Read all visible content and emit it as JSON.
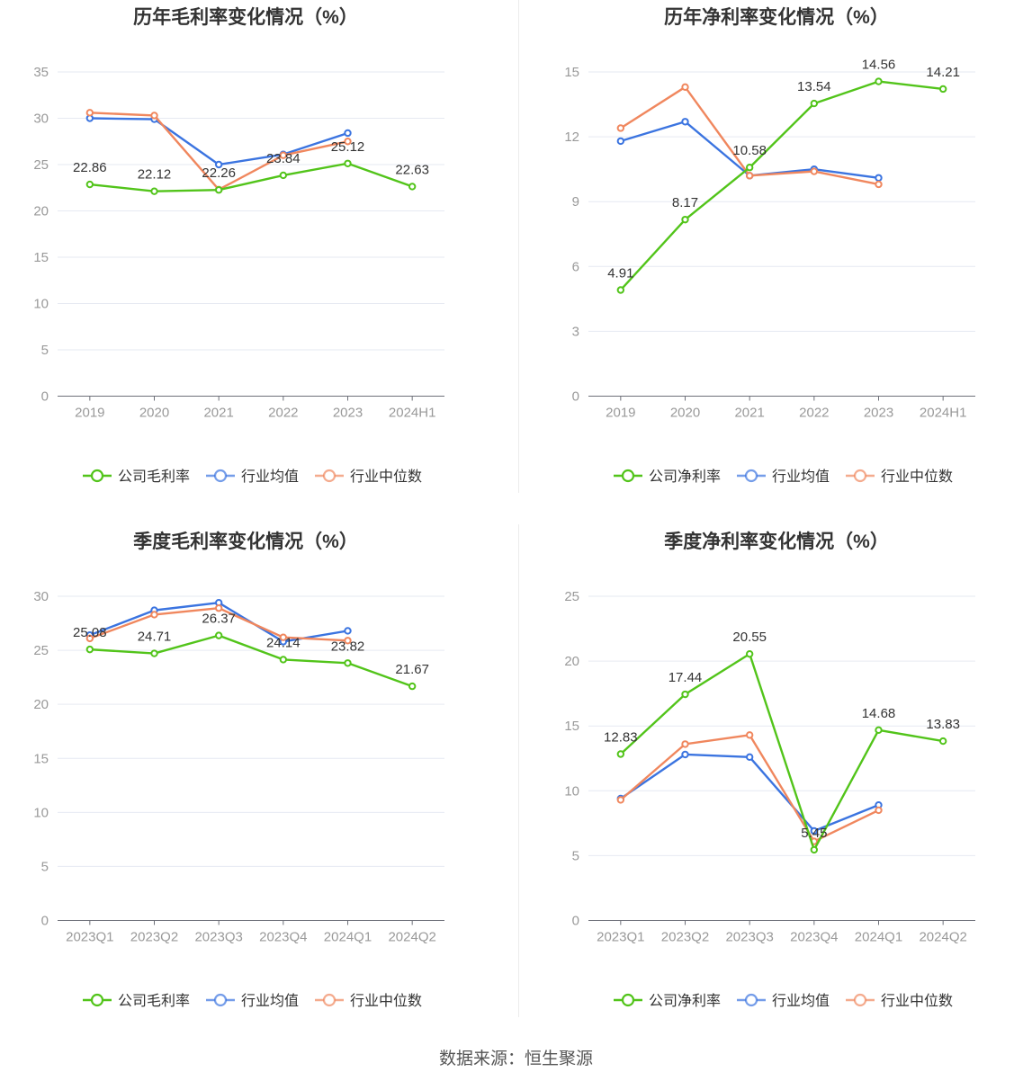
{
  "colors": {
    "company": "#52c41a",
    "avg": "#3b74e0",
    "median": "#f0875e",
    "grid": "#e6e9f2",
    "axis": "#6e7079",
    "tick": "#999999"
  },
  "source": "数据来源：恒生聚源",
  "chart_data": [
    {
      "type": "line",
      "title": "历年毛利率变化情况（%）",
      "categories": [
        "2019",
        "2020",
        "2021",
        "2022",
        "2023",
        "2024H1"
      ],
      "ylim": [
        0,
        35
      ],
      "yticks": [
        "0",
        "5",
        "10",
        "15",
        "20",
        "25",
        "30",
        "35"
      ],
      "series": [
        {
          "name": "公司毛利率",
          "key": "company",
          "values": [
            22.86,
            22.12,
            22.26,
            23.84,
            25.12,
            22.63
          ],
          "labels": [
            "22.86",
            "22.12",
            "22.26",
            "23.84",
            "25.12",
            "22.63"
          ]
        },
        {
          "name": "行业均值",
          "key": "avg",
          "values": [
            30.0,
            29.9,
            25.0,
            26.1,
            28.4,
            null
          ]
        },
        {
          "name": "行业中位数",
          "key": "median",
          "values": [
            30.6,
            30.3,
            22.3,
            26.0,
            27.5,
            null
          ]
        }
      ]
    },
    {
      "type": "line",
      "title": "历年净利率变化情况（%）",
      "categories": [
        "2019",
        "2020",
        "2021",
        "2022",
        "2023",
        "2024H1"
      ],
      "ylim": [
        0,
        15
      ],
      "yticks": [
        "0",
        "3",
        "6",
        "9",
        "12",
        "15"
      ],
      "series": [
        {
          "name": "公司净利率",
          "key": "company",
          "values": [
            4.91,
            8.17,
            10.58,
            13.54,
            14.56,
            14.21
          ],
          "labels": [
            "4.91",
            "8.17",
            "10.58",
            "13.54",
            "14.56",
            "14.21"
          ]
        },
        {
          "name": "行业均值",
          "key": "avg",
          "values": [
            11.8,
            12.7,
            10.2,
            10.5,
            10.1,
            null
          ]
        },
        {
          "name": "行业中位数",
          "key": "median",
          "values": [
            12.4,
            14.3,
            10.2,
            10.4,
            9.8,
            null
          ]
        }
      ]
    },
    {
      "type": "line",
      "title": "季度毛利率变化情况（%）",
      "categories": [
        "2023Q1",
        "2023Q2",
        "2023Q3",
        "2023Q4",
        "2024Q1",
        "2024Q2"
      ],
      "ylim": [
        0,
        30
      ],
      "yticks": [
        "0",
        "5",
        "10",
        "15",
        "20",
        "25",
        "30"
      ],
      "series": [
        {
          "name": "公司毛利率",
          "key": "company",
          "values": [
            25.08,
            24.71,
            26.37,
            24.14,
            23.82,
            21.67
          ],
          "labels": [
            "25.08",
            "24.71",
            "26.37",
            "24.14",
            "23.82",
            "21.67"
          ]
        },
        {
          "name": "行业均值",
          "key": "avg",
          "values": [
            26.4,
            28.7,
            29.4,
            25.8,
            26.8,
            null
          ]
        },
        {
          "name": "行业中位数",
          "key": "median",
          "values": [
            26.1,
            28.3,
            28.9,
            26.2,
            25.9,
            null
          ]
        }
      ]
    },
    {
      "type": "line",
      "title": "季度净利率变化情况（%）",
      "categories": [
        "2023Q1",
        "2023Q2",
        "2023Q3",
        "2023Q4",
        "2024Q1",
        "2024Q2"
      ],
      "ylim": [
        0,
        25
      ],
      "yticks": [
        "0",
        "5",
        "10",
        "15",
        "20",
        "25"
      ],
      "series": [
        {
          "name": "公司净利率",
          "key": "company",
          "values": [
            12.83,
            17.44,
            20.55,
            5.45,
            14.68,
            13.83
          ],
          "labels": [
            "12.83",
            "17.44",
            "20.55",
            "5.45",
            "14.68",
            "13.83"
          ]
        },
        {
          "name": "行业均值",
          "key": "avg",
          "values": [
            9.4,
            12.8,
            12.6,
            6.9,
            8.9,
            null
          ]
        },
        {
          "name": "行业中位数",
          "key": "median",
          "values": [
            9.3,
            13.6,
            14.3,
            6.1,
            8.5,
            null
          ]
        }
      ]
    }
  ]
}
